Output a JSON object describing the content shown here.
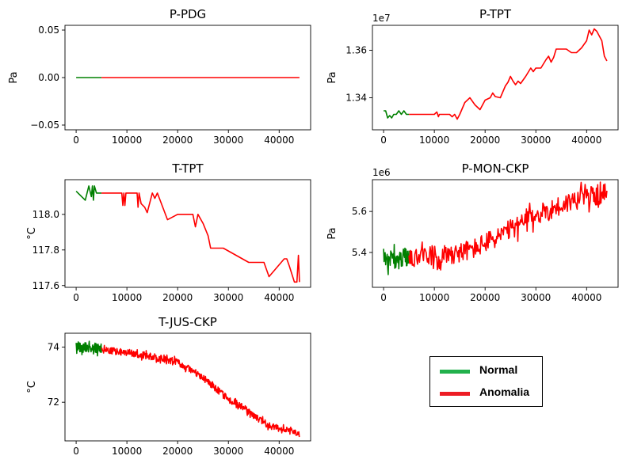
{
  "colors": {
    "normal": "#008000",
    "anomaly": "#ff0000",
    "legend_normal": "#22b14c",
    "legend_anomaly": "#ed1c24"
  },
  "legend": {
    "items": [
      {
        "label": "Normal",
        "color": "#22b14c"
      },
      {
        "label": "Anomalia",
        "color": "#ed1c24"
      }
    ]
  },
  "chart_data": [
    {
      "id": "p-pdg",
      "type": "line",
      "title": "P-PDG",
      "ylabel": "Pa",
      "xlim": [
        -2200,
        46200
      ],
      "ylim": [
        -0.055,
        0.055
      ],
      "xticks": [
        0,
        10000,
        20000,
        30000,
        40000
      ],
      "xtick_labels": [
        "0",
        "10000",
        "20000",
        "30000",
        "40000"
      ],
      "yticks": [
        -0.05,
        0.0,
        0.05
      ],
      "ytick_labels": [
        "−0.05",
        "0.00",
        "0.05"
      ],
      "series": [
        {
          "name": "Normal",
          "color": "#008000",
          "x": [
            0,
            5000
          ],
          "y": [
            0,
            0
          ]
        },
        {
          "name": "Anomalia",
          "color": "#ff0000",
          "x": [
            5000,
            44000
          ],
          "y": [
            0,
            0
          ]
        }
      ]
    },
    {
      "id": "p-tpt",
      "type": "line",
      "title": "P-TPT",
      "ylabel": "Pa",
      "offset_label": "1e7",
      "xlim": [
        -2200,
        46200
      ],
      "ylim": [
        13265000,
        13705000
      ],
      "xticks": [
        0,
        10000,
        20000,
        30000,
        40000
      ],
      "xtick_labels": [
        "0",
        "10000",
        "20000",
        "30000",
        "40000"
      ],
      "yticks": [
        13400000,
        13600000
      ],
      "ytick_labels": [
        "1.34",
        "1.36"
      ],
      "series": [
        {
          "name": "Normal",
          "color": "#008000",
          "x": [
            0,
            400,
            800,
            1200,
            1600,
            2000,
            2500,
            3000,
            3500,
            4000,
            4500,
            5000
          ],
          "y": [
            13345000,
            13345000,
            13315000,
            13325000,
            13315000,
            13330000,
            13330000,
            13345000,
            13330000,
            13345000,
            13330000,
            13330000
          ]
        },
        {
          "name": "Anomalia",
          "color": "#ff0000",
          "x": [
            5000,
            6000,
            8000,
            9000,
            10000,
            10500,
            10800,
            11000,
            11500,
            12000,
            13000,
            13500,
            14000,
            14500,
            15000,
            16000,
            17000,
            18000,
            19000,
            20000,
            21000,
            21500,
            22000,
            23000,
            24000,
            24500,
            25000,
            25500,
            26000,
            26500,
            27000,
            28000,
            29000,
            29500,
            30000,
            31000,
            32000,
            32500,
            33000,
            33500,
            34000,
            35000,
            36000,
            37000,
            38000,
            39000,
            40000,
            40500,
            41000,
            41500,
            42000,
            42500,
            43000,
            43500,
            44000
          ],
          "y": [
            13330000,
            13330000,
            13330000,
            13330000,
            13330000,
            13340000,
            13320000,
            13330000,
            13330000,
            13330000,
            13330000,
            13320000,
            13330000,
            13310000,
            13330000,
            13380000,
            13400000,
            13370000,
            13350000,
            13390000,
            13400000,
            13420000,
            13405000,
            13400000,
            13450000,
            13465000,
            13490000,
            13470000,
            13455000,
            13470000,
            13460000,
            13490000,
            13525000,
            13510000,
            13525000,
            13525000,
            13560000,
            13575000,
            13550000,
            13570000,
            13605000,
            13605000,
            13605000,
            13590000,
            13590000,
            13610000,
            13640000,
            13685000,
            13665000,
            13690000,
            13680000,
            13660000,
            13640000,
            13575000,
            13555000
          ]
        }
      ]
    },
    {
      "id": "t-tpt",
      "type": "line",
      "title": "T-TPT",
      "ylabel": "°C",
      "xlim": [
        -2200,
        46200
      ],
      "ylim": [
        117.59,
        118.195
      ],
      "xticks": [
        0,
        10000,
        20000,
        30000,
        40000
      ],
      "xtick_labels": [
        "0",
        "10000",
        "20000",
        "30000",
        "40000"
      ],
      "yticks": [
        117.6,
        117.8,
        118.0
      ],
      "ytick_labels": [
        "117.6",
        "117.8",
        "118.0"
      ],
      "series": [
        {
          "name": "Normal",
          "color": "#008000",
          "x": [
            0,
            1800,
            2500,
            3000,
            3200,
            3400,
            3600,
            4000,
            5000
          ],
          "y": [
            118.13,
            118.08,
            118.16,
            118.1,
            118.16,
            118.08,
            118.16,
            118.12,
            118.12
          ]
        },
        {
          "name": "Anomalia",
          "color": "#ff0000",
          "x": [
            5000,
            9000,
            9200,
            9400,
            9600,
            9800,
            10000,
            10200,
            12000,
            12200,
            12400,
            12800,
            13500,
            14000,
            15000,
            15500,
            16000,
            18000,
            20000,
            23000,
            23500,
            24000,
            25000,
            26000,
            26500,
            27000,
            28000,
            29000,
            34000,
            37000,
            38000,
            41000,
            41500,
            42000,
            43000,
            43500,
            43800,
            44000
          ],
          "y": [
            118.12,
            118.12,
            118.05,
            118.12,
            118.05,
            118.12,
            118.12,
            118.12,
            118.12,
            118.04,
            118.12,
            118.06,
            118.04,
            118.01,
            118.12,
            118.09,
            118.12,
            117.97,
            118.0,
            118.0,
            117.93,
            118.0,
            117.95,
            117.88,
            117.81,
            117.81,
            117.81,
            117.81,
            117.73,
            117.73,
            117.65,
            117.75,
            117.75,
            117.71,
            117.62,
            117.62,
            117.77,
            117.62
          ]
        }
      ]
    },
    {
      "id": "p-mon-ckp",
      "type": "line",
      "title": "P-MON-CKP",
      "ylabel": "Pa",
      "offset_label": "1e6",
      "xlim": [
        -2200,
        46200
      ],
      "ylim": [
        5230000,
        5755000
      ],
      "xticks": [
        0,
        10000,
        20000,
        30000,
        40000
      ],
      "xtick_labels": [
        "0",
        "10000",
        "20000",
        "30000",
        "40000"
      ],
      "yticks": [
        5400000,
        5600000
      ],
      "ytick_labels": [
        "5.4",
        "5.6"
      ],
      "series": [
        {
          "name": "Normal",
          "color": "#008000",
          "trend": {
            "x": [
              0,
              5000
            ],
            "y": [
              5360000,
              5380000
            ]
          },
          "noise": 45000,
          "step": 100
        },
        {
          "name": "Anomalia",
          "color": "#ff0000",
          "trend": {
            "x": [
              5000,
              8000,
              15000,
              18000,
              25000,
              30000,
              35000,
              38000,
              42000,
              44000
            ],
            "y": [
              5380000,
              5380000,
              5400000,
              5420000,
              5510000,
              5580000,
              5630000,
              5660000,
              5680000,
              5690000
            ]
          },
          "noise": 50000,
          "step": 130
        }
      ]
    },
    {
      "id": "t-jus-ckp",
      "type": "line",
      "title": "T-JUS-CKP",
      "ylabel": "°C",
      "xlim": [
        -2200,
        46200
      ],
      "ylim": [
        70.6,
        74.5
      ],
      "xticks": [
        0,
        10000,
        20000,
        30000,
        40000
      ],
      "xtick_labels": [
        "0",
        "10000",
        "20000",
        "30000",
        "40000"
      ],
      "yticks": [
        72,
        74
      ],
      "ytick_labels": [
        "72",
        "74"
      ],
      "series": [
        {
          "name": "Normal",
          "color": "#008000",
          "trend": {
            "x": [
              0,
              5000
            ],
            "y": [
              74.0,
              73.95
            ]
          },
          "noise": 0.18,
          "step": 60
        },
        {
          "name": "Anomalia",
          "color": "#ff0000",
          "trend": {
            "x": [
              5000,
              10000,
              15000,
              20000,
              22000,
              25000,
              30000,
              33000,
              35000,
              38000,
              40000,
              42000,
              44000
            ],
            "y": [
              73.9,
              73.8,
              73.65,
              73.45,
              73.25,
              72.9,
              72.1,
              71.8,
              71.5,
              71.15,
              71.05,
              71.0,
              70.85
            ]
          },
          "noise": 0.12,
          "step": 80
        }
      ]
    }
  ]
}
